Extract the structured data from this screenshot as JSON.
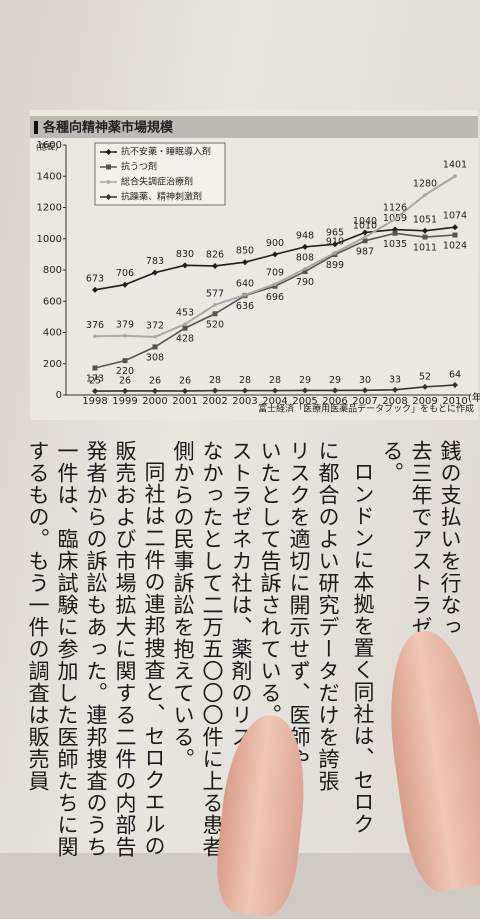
{
  "chart_data": {
    "type": "line",
    "title": "各種向精神薬市場規模",
    "y_label": "(億錠)",
    "x_label": "(年",
    "source": "富士経済「医療用医薬品データブック」をもとに作成",
    "categories": [
      "1998",
      "1999",
      "2000",
      "2001",
      "2002",
      "2003",
      "2004",
      "2005",
      "2006",
      "2007",
      "2008",
      "2009",
      "2010"
    ],
    "series": [
      {
        "name": "抗不安薬・睡眠導入剤",
        "color": "#1e1e1e",
        "values": [
          673,
          706,
          783,
          830,
          826,
          850,
          900,
          948,
          965,
          1040,
          1059,
          1051,
          1074
        ]
      },
      {
        "name": "抗うつ剤",
        "color": "#555555",
        "values": [
          173,
          220,
          308,
          428,
          520,
          636,
          696,
          790,
          899,
          987,
          1035,
          1011,
          1024
        ]
      },
      {
        "name": "総合失調症治療剤",
        "color": "#a8a8a8",
        "values": [
          376,
          379,
          372,
          453,
          577,
          640,
          709,
          808,
          910,
          1010,
          1126,
          1280,
          1401
        ]
      },
      {
        "name": "抗躁薬、精神刺激剤",
        "color": "#333333",
        "values": [
          25,
          26,
          26,
          26,
          28,
          28,
          28,
          29,
          29,
          30,
          33,
          52,
          64
        ]
      }
    ],
    "ylim": [
      0,
      1600
    ],
    "yticks": [
      0,
      200,
      400,
      600,
      800,
      1000,
      1200,
      1400,
      1600
    ],
    "grid": false,
    "legend": "top-left"
  },
  "body_text": [
    "銭の支払いを行なっ",
    "去三年でアストラゼ",
    "る。",
    "ロンドンに本拠を置く同社は、セロク",
    "に都合のよい研究データだけを誇張",
    "リスクを適切に開示せず、医師や",
    "いたとして告訴されている。現",
    "ストラゼネカ社は、薬剤のリスクを開示し",
    "なかったとして二万五〇〇〇件に上る患者",
    "側からの民事訴訟を抱えている。",
    "同社は二件の連邦捜査と、セロクエルの",
    "販売および市場拡大に関する二件の内部告",
    "発者からの訴訟もあった。連邦捜査のうち",
    "一件は、臨床試験に参加した医師たちに関",
    "するもの。もう一件の調査は販売員"
  ]
}
